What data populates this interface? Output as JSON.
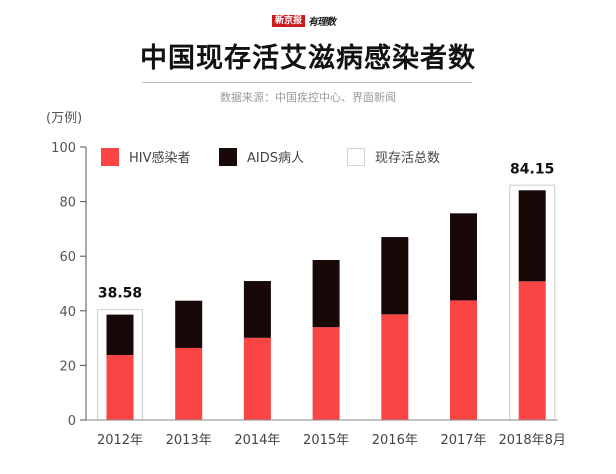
{
  "header": {
    "logo_brand": "新京报",
    "logo_column": "有理数",
    "title": "中国现存活艾滋病感染者数",
    "source": "数据来源：中国疾控中心、界面新闻"
  },
  "colors": {
    "hiv": "#fb4545",
    "aids": "#180808",
    "total_outline": "#d4d4d4",
    "axis": "#555555"
  },
  "chart_data": {
    "type": "bar",
    "stacked": true,
    "title": "中国现存活艾滋病感染者数",
    "unit_label": "(万例)",
    "xlabel": "",
    "ylabel": "(万例)",
    "ylim": [
      0,
      100
    ],
    "yticks": [
      0,
      20,
      40,
      60,
      80,
      100
    ],
    "grid": false,
    "legend_position": "top",
    "categories": [
      "2012年",
      "2013年",
      "2014年",
      "2015年",
      "2016年",
      "2017年",
      "2018年8月"
    ],
    "series": [
      {
        "name": "HIV感染者",
        "color_key": "hiv",
        "values": [
          23.8,
          26.4,
          30.1,
          34.0,
          38.7,
          43.8,
          50.8
        ]
      },
      {
        "name": "AIDS病人",
        "color_key": "aids",
        "values": [
          14.8,
          17.3,
          20.8,
          24.6,
          28.3,
          31.9,
          33.35
        ]
      }
    ],
    "totals": {
      "name": "现存活总数",
      "values": [
        38.58,
        43.7,
        50.9,
        58.6,
        67.0,
        75.7,
        84.15
      ],
      "highlighted": [
        {
          "index": 0,
          "label": "38.58"
        },
        {
          "index": 6,
          "label": "84.15"
        }
      ]
    },
    "legend": [
      {
        "name": "HIV感染者",
        "swatch": "hiv"
      },
      {
        "name": "AIDS病人",
        "swatch": "aids"
      },
      {
        "name": "现存活总数",
        "swatch": "outline"
      }
    ]
  }
}
